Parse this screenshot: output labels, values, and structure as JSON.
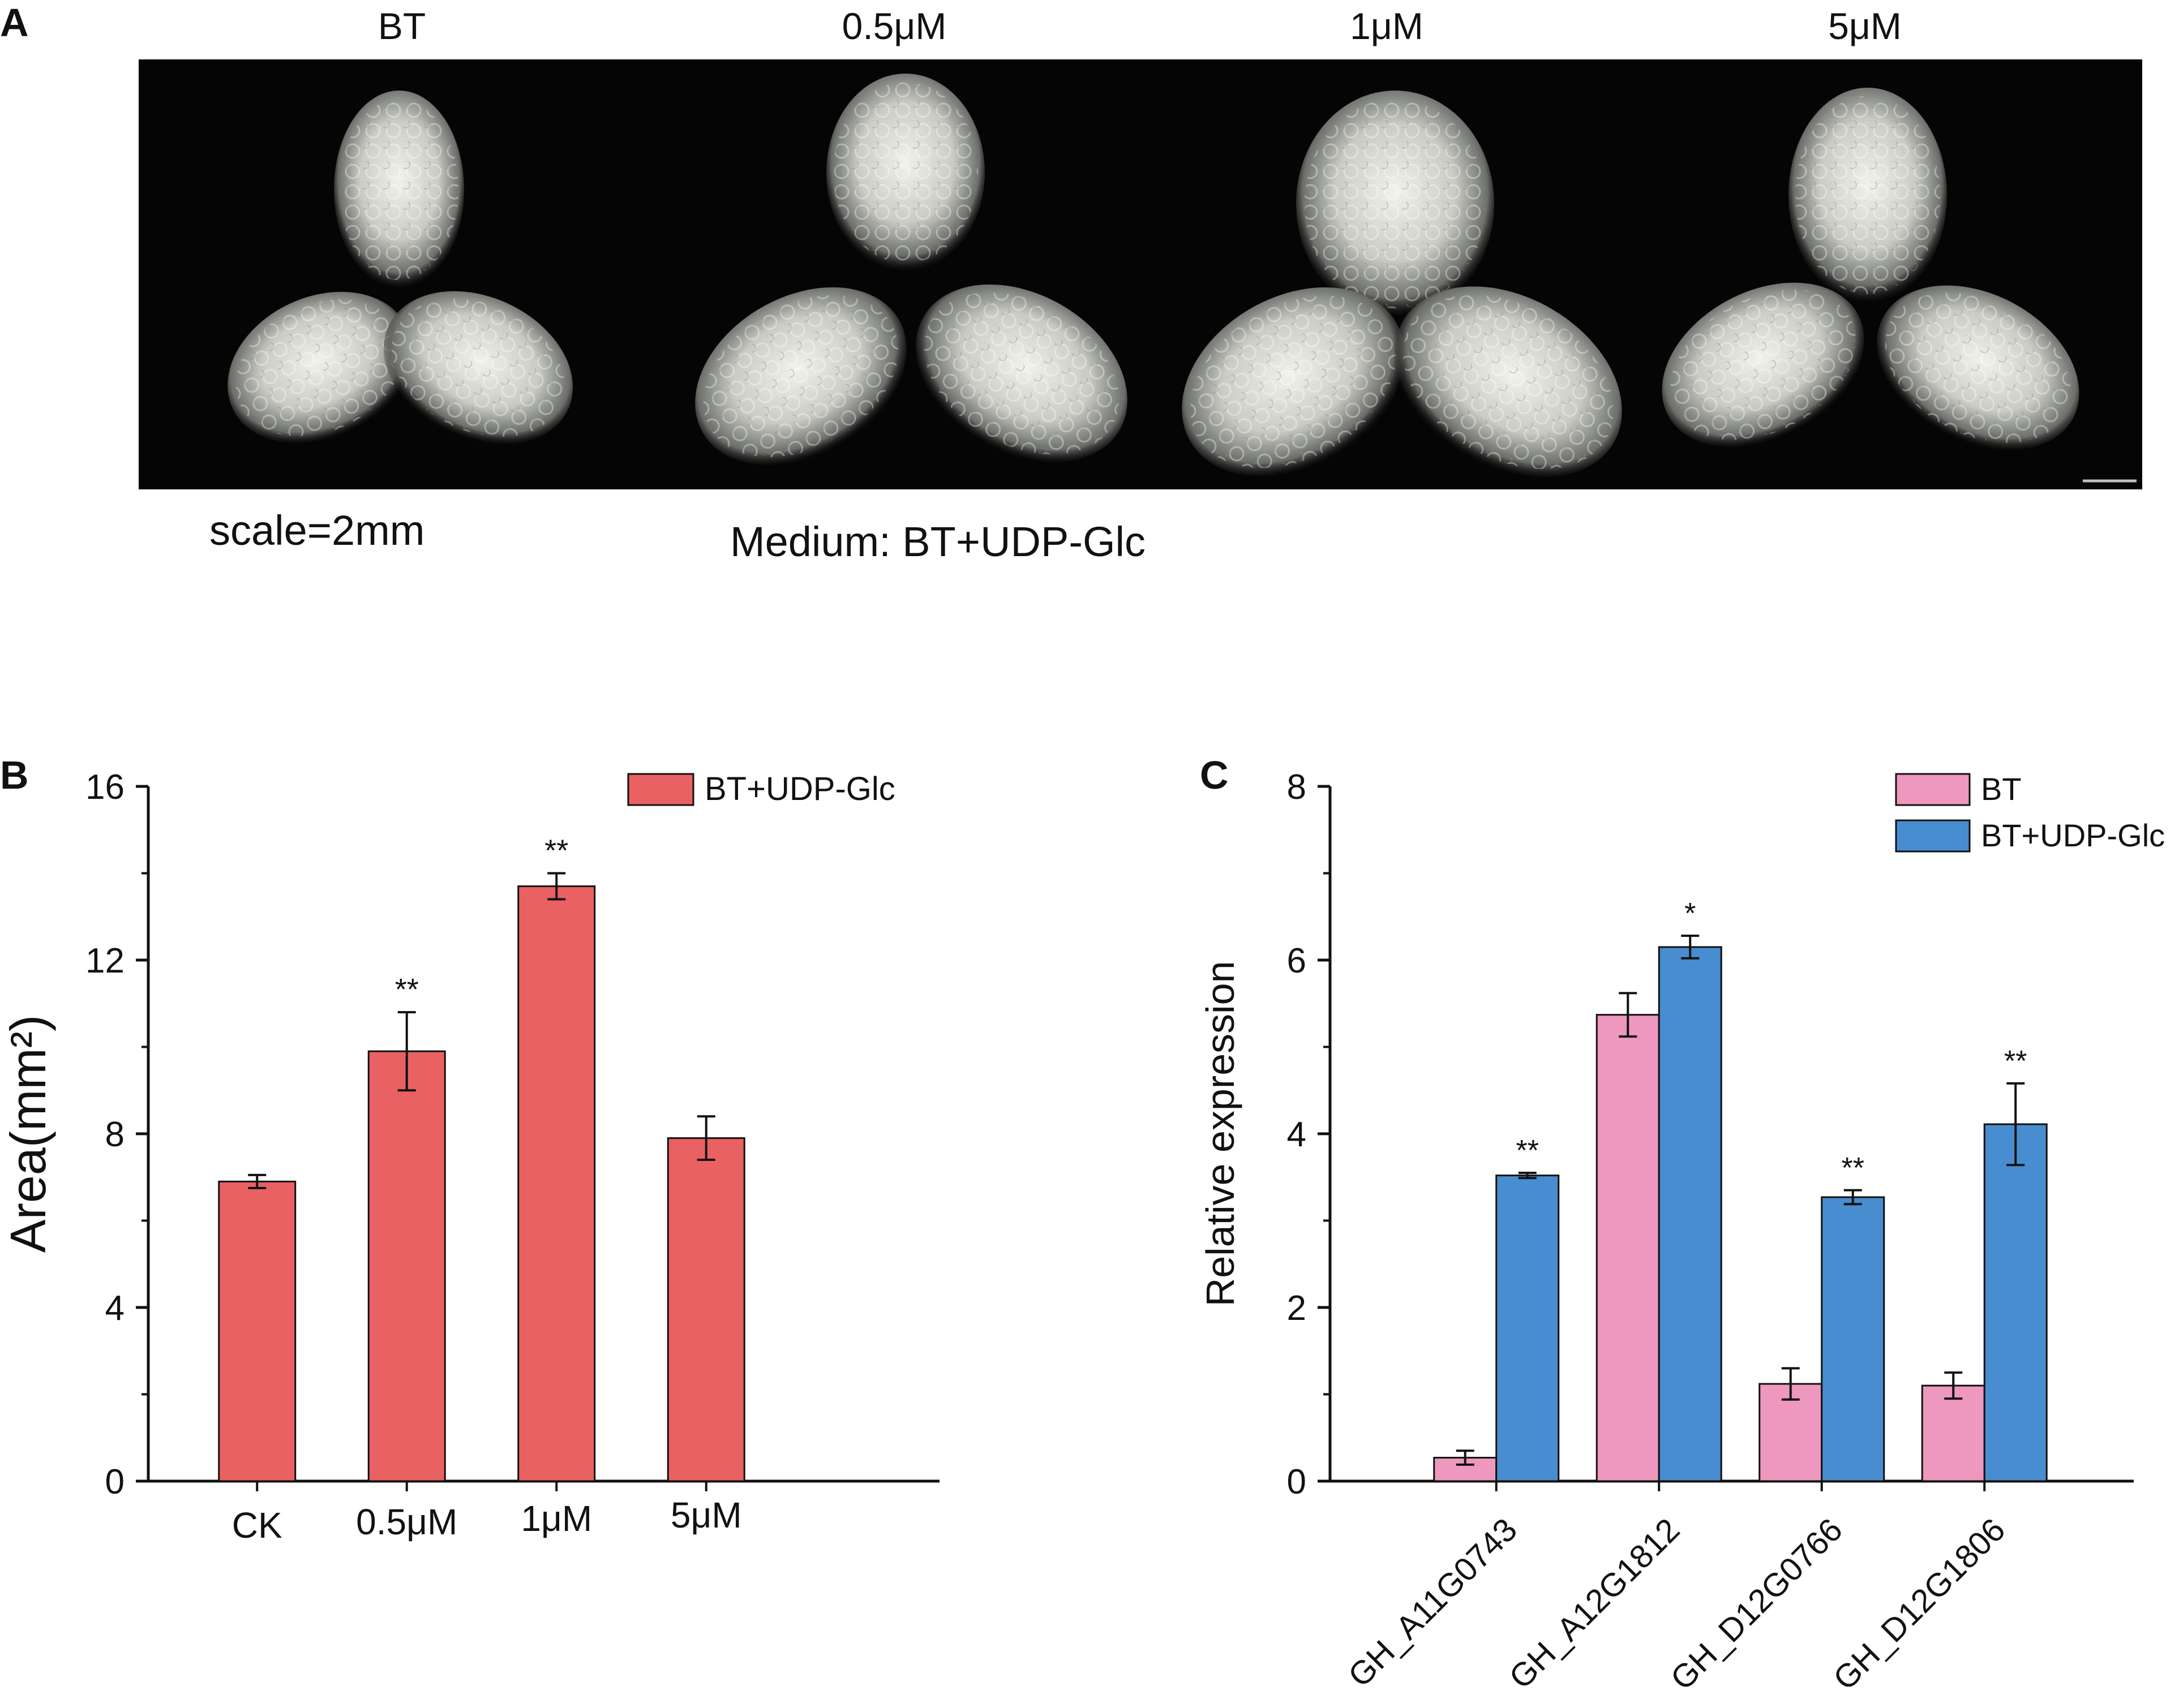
{
  "panel_a": {
    "letter": "A",
    "column_labels": [
      "BT",
      "0.5μM",
      "1μM",
      "5μM"
    ],
    "scale_text": "scale=2mm",
    "medium_text": "Medium: BT+UDP-Glc"
  },
  "panel_b": {
    "letter": "B"
  },
  "panel_c": {
    "letter": "C"
  },
  "chart_data": [
    {
      "type": "bar",
      "panel": "B",
      "categories": [
        "CK",
        "0.5μM",
        "1μM",
        "5μM"
      ],
      "series": [
        {
          "name": "BT+UDP-Glc",
          "values": [
            6.9,
            9.9,
            13.7,
            7.9
          ],
          "errors": [
            0.15,
            0.9,
            0.3,
            0.5
          ],
          "color": "#ea6163"
        }
      ],
      "significance": [
        "",
        "**",
        "**",
        ""
      ],
      "ylabel": "Area(mm²)",
      "ylim": [
        0,
        16
      ],
      "yticks": [
        0,
        4,
        8,
        12,
        16
      ],
      "legend": "top-right",
      "grid": false
    },
    {
      "type": "bar",
      "panel": "C",
      "categories": [
        "GH_A11G0743",
        "GH_A12G1812",
        "GH_D12G0766",
        "GH_D12G1806"
      ],
      "series": [
        {
          "name": "BT",
          "values": [
            0.27,
            5.37,
            1.12,
            1.1
          ],
          "errors": [
            0.08,
            0.25,
            0.18,
            0.15
          ],
          "color": "#ee97bf"
        },
        {
          "name": "BT+UDP-Glc",
          "values": [
            3.52,
            6.15,
            3.27,
            4.11
          ],
          "errors": [
            0.03,
            0.13,
            0.08,
            0.47
          ],
          "color": "#478dd0"
        }
      ],
      "significance": [
        "**",
        "*",
        "**",
        "**"
      ],
      "ylabel": "Relative expression",
      "ylim": [
        0,
        8
      ],
      "yticks": [
        0,
        2,
        4,
        6,
        8
      ],
      "legend": "top-right",
      "grid": false
    }
  ]
}
